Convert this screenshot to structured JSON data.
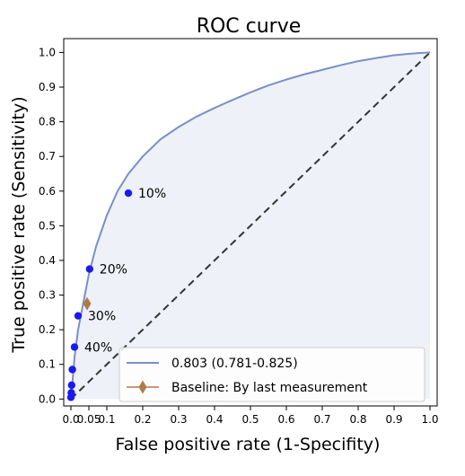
{
  "chart_data": {
    "type": "line",
    "title": "ROC curve",
    "xlabel": "False positive rate (1-Specifity)",
    "ylabel": "True positive rate (Sensitivity)",
    "xlim": [
      -0.02,
      1.02
    ],
    "ylim": [
      -0.02,
      1.04
    ],
    "x_ticks": [
      "0.0",
      "0.05",
      "0.1",
      "0.2",
      "0.3",
      "0.4",
      "0.5",
      "0.6",
      "0.7",
      "0.8",
      "0.9",
      "1.0"
    ],
    "x_tick_values": [
      0.0,
      0.05,
      0.1,
      0.2,
      0.3,
      0.4,
      0.5,
      0.6,
      0.7,
      0.8,
      0.9,
      1.0
    ],
    "y_ticks": [
      "0.0",
      "0.1",
      "0.2",
      "0.3",
      "0.4",
      "0.5",
      "0.6",
      "0.7",
      "0.8",
      "0.9",
      "1.0"
    ],
    "y_tick_values": [
      0.0,
      0.1,
      0.2,
      0.3,
      0.4,
      0.5,
      0.6,
      0.7,
      0.8,
      0.9,
      1.0
    ],
    "grid": false,
    "legend_position": "bottom-right",
    "series": [
      {
        "name": "0.803 (0.781-0.825)",
        "kind": "roc_curve",
        "color": "#7a8fc4",
        "fill": "#eef1f8",
        "x": [
          0.0,
          0.003,
          0.006,
          0.01,
          0.02,
          0.035,
          0.05,
          0.07,
          0.1,
          0.13,
          0.16,
          0.2,
          0.25,
          0.3,
          0.35,
          0.4,
          0.45,
          0.5,
          0.55,
          0.6,
          0.65,
          0.7,
          0.75,
          0.8,
          0.85,
          0.9,
          0.95,
          1.0
        ],
        "y": [
          0.0,
          0.03,
          0.07,
          0.12,
          0.2,
          0.28,
          0.36,
          0.44,
          0.53,
          0.6,
          0.65,
          0.7,
          0.75,
          0.785,
          0.815,
          0.84,
          0.863,
          0.885,
          0.905,
          0.922,
          0.937,
          0.95,
          0.963,
          0.975,
          0.984,
          0.992,
          0.997,
          1.0
        ]
      },
      {
        "name": "",
        "kind": "diagonal",
        "color": "#333333",
        "x": [
          0.0,
          1.0
        ],
        "y": [
          0.0,
          1.0
        ]
      }
    ],
    "threshold_points": {
      "color": "#1a1aee",
      "points": [
        {
          "x": 0.16,
          "y": 0.594,
          "label": "10%"
        },
        {
          "x": 0.052,
          "y": 0.375,
          "label": "20%"
        },
        {
          "x": 0.02,
          "y": 0.24,
          "label": "30%"
        },
        {
          "x": 0.01,
          "y": 0.15,
          "label": "40%"
        },
        {
          "x": 0.004,
          "y": 0.085,
          "label": ""
        },
        {
          "x": 0.002,
          "y": 0.04,
          "label": ""
        },
        {
          "x": 0.001,
          "y": 0.018,
          "label": ""
        },
        {
          "x": 0.0,
          "y": 0.005,
          "label": ""
        }
      ]
    },
    "baseline": {
      "name": "Baseline: By last measurement",
      "color": "#b07a4a",
      "x": 0.045,
      "y": 0.275
    }
  }
}
